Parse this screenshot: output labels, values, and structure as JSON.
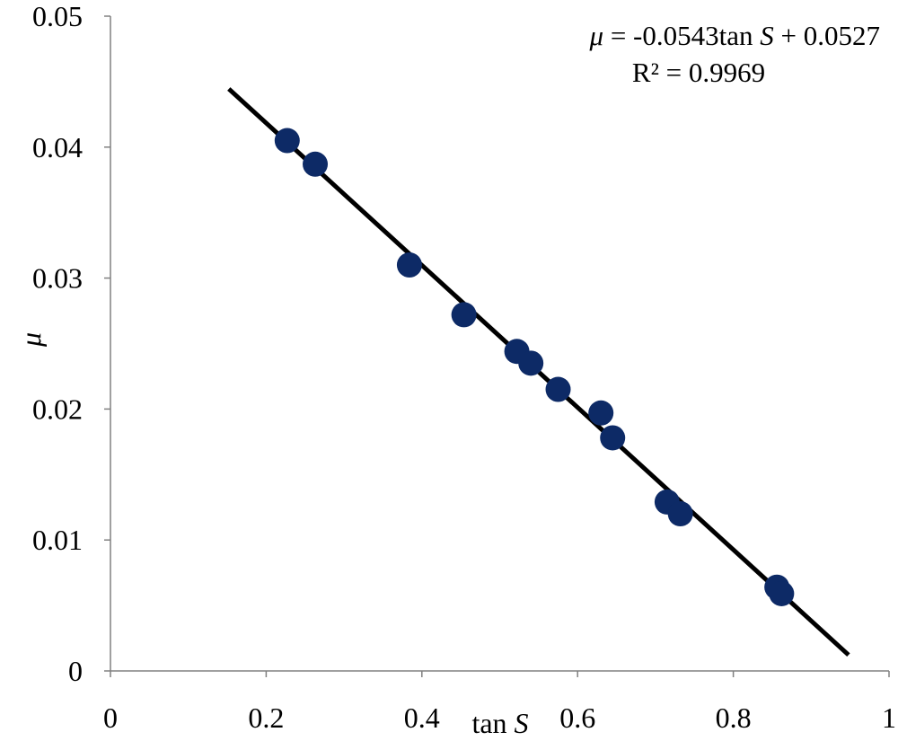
{
  "chart_data": {
    "type": "scatter",
    "xlabel": {
      "prefix": "tan ",
      "var": "S"
    },
    "ylabel": "μ",
    "xlim": [
      0,
      1
    ],
    "ylim": [
      0,
      0.05
    ],
    "x_ticks": [
      "0",
      "0.2",
      "0.4",
      "0.6",
      "0.8",
      "1"
    ],
    "y_ticks": [
      "0",
      "0.01",
      "0.02",
      "0.03",
      "0.04",
      "0.05"
    ],
    "grid": false,
    "colors": {
      "points": "#0d2a66",
      "trendline": "#000000"
    },
    "series": [
      {
        "points": [
          {
            "x": 0.227,
            "y": 0.0405
          },
          {
            "x": 0.263,
            "y": 0.0387
          },
          {
            "x": 0.384,
            "y": 0.031
          },
          {
            "x": 0.454,
            "y": 0.0272
          },
          {
            "x": 0.522,
            "y": 0.0244
          },
          {
            "x": 0.54,
            "y": 0.0235
          },
          {
            "x": 0.575,
            "y": 0.0215
          },
          {
            "x": 0.63,
            "y": 0.0197
          },
          {
            "x": 0.645,
            "y": 0.0178
          },
          {
            "x": 0.715,
            "y": 0.0129
          },
          {
            "x": 0.732,
            "y": 0.012
          },
          {
            "x": 0.856,
            "y": 0.0064
          },
          {
            "x": 0.862,
            "y": 0.0059
          }
        ]
      }
    ],
    "trendline": {
      "slope": -0.0543,
      "intercept": 0.0527,
      "x_range": [
        0.152,
        0.948
      ]
    },
    "annotation": {
      "line1": {
        "mu": "μ",
        "mid": " = -0.0543tan ",
        "S": "S",
        "tail": " + 0.0527"
      },
      "line2": "R² = 0.9969"
    }
  }
}
